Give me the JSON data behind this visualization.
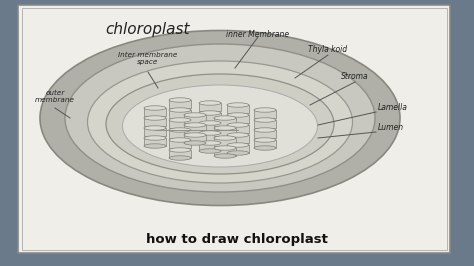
{
  "title": "chloroplast",
  "bottom_text": "how to draw chloroplast",
  "bg_color": "#6a7a8a",
  "paper_color": "#f0eee8",
  "paper_border": "#aaaaaa",
  "labels": {
    "inner_membrane": "inner Membrane",
    "inter_membrane_space": "Inter membrane\nspace",
    "outer_membrane": "outer\nmembrane",
    "thylakoid": "Thyla koid",
    "stroma": "Stroma",
    "lamella": "Lamella",
    "lumen": "Lumen"
  },
  "line_color": "#444444",
  "sketch_color": "#888888"
}
